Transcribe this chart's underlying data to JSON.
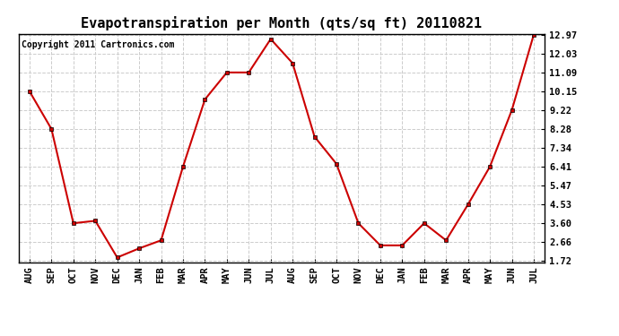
{
  "title": "Evapotranspiration per Month (qts/sq ft) 20110821",
  "copyright": "Copyright 2011 Cartronics.com",
  "months": [
    "AUG",
    "SEP",
    "OCT",
    "NOV",
    "DEC",
    "JAN",
    "FEB",
    "MAR",
    "APR",
    "MAY",
    "JUN",
    "JUL",
    "AUG",
    "SEP",
    "OCT",
    "NOV",
    "DEC",
    "JAN",
    "FEB",
    "MAR",
    "APR",
    "MAY",
    "JUN",
    "JUL"
  ],
  "values": [
    10.15,
    8.28,
    3.6,
    3.72,
    1.9,
    2.35,
    2.75,
    6.41,
    9.75,
    11.09,
    11.09,
    12.75,
    11.55,
    7.9,
    6.55,
    3.6,
    2.5,
    2.5,
    3.6,
    2.75,
    4.53,
    6.41,
    9.22,
    12.97
  ],
  "yticks": [
    1.72,
    2.66,
    3.6,
    4.53,
    5.47,
    6.41,
    7.34,
    8.28,
    9.22,
    10.15,
    11.09,
    12.03,
    12.97
  ],
  "ytick_labels": [
    "1.72",
    "2.66",
    "3.60",
    "4.53",
    "5.47",
    "6.41",
    "7.34",
    "8.28",
    "9.22",
    "10.15",
    "11.09",
    "12.03",
    "12.97"
  ],
  "ymin": 1.72,
  "ymax": 12.97,
  "line_color": "#cc0000",
  "marker": "s",
  "marker_size": 3,
  "bg_color": "#ffffff",
  "grid_color": "#cccccc",
  "title_fontsize": 11,
  "tick_fontsize": 7.5,
  "copyright_fontsize": 7
}
